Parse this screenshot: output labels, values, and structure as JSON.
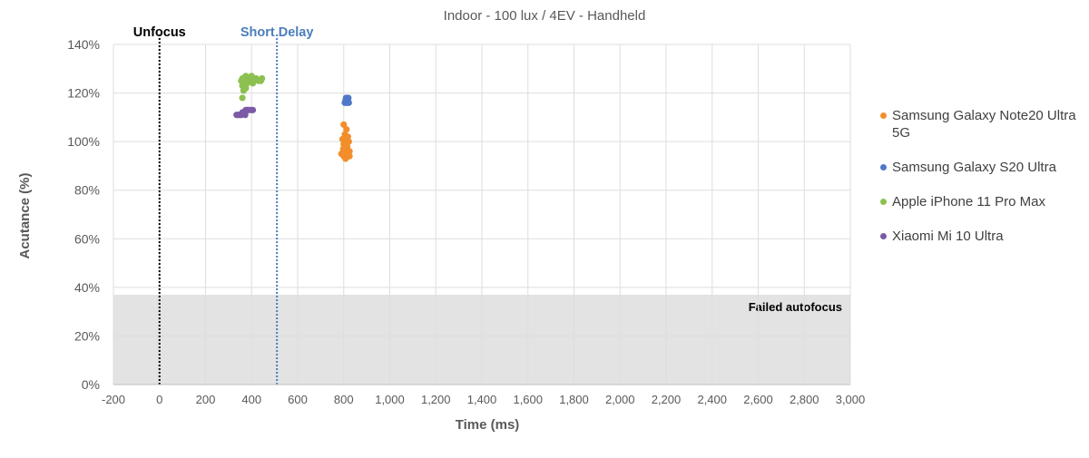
{
  "chart_data": {
    "type": "scatter",
    "title": "Indoor - 100 lux / 4EV - Handheld",
    "xlabel": "Time (ms)",
    "ylabel": "Acutance (%)",
    "xlim": [
      -200,
      3000
    ],
    "ylim": [
      0,
      140
    ],
    "x_ticks": [
      -200,
      0,
      200,
      400,
      600,
      800,
      1000,
      1200,
      1400,
      1600,
      1800,
      2000,
      2200,
      2400,
      2600,
      2800,
      3000
    ],
    "x_tick_labels": [
      "-200",
      "0",
      "200",
      "400",
      "600",
      "800",
      "1,000",
      "1,200",
      "1,400",
      "1,600",
      "1,800",
      "2,000",
      "2,200",
      "2,400",
      "2,600",
      "2,800",
      "3,000"
    ],
    "y_ticks": [
      0,
      20,
      40,
      60,
      80,
      100,
      120,
      140
    ],
    "y_tick_labels": [
      "0%",
      "20%",
      "40%",
      "60%",
      "80%",
      "100%",
      "120%",
      "140%"
    ],
    "grid": true,
    "legend_position": "right",
    "reference_lines": [
      {
        "label": "Unfocus",
        "x": 0,
        "color": "#000000"
      },
      {
        "label": "Short Delay",
        "x": 510,
        "color": "#4a7ebb"
      }
    ],
    "shaded_region": {
      "label": "Failed autofocus",
      "y_from": 0,
      "y_to": 37,
      "color": "#e3e3e3"
    },
    "series": [
      {
        "name": "Samsung Galaxy Note20 Ultra 5G",
        "color": "#f28e2b",
        "points": [
          [
            800,
            107
          ],
          [
            812,
            105
          ],
          [
            805,
            103
          ],
          [
            818,
            102
          ],
          [
            795,
            101
          ],
          [
            808,
            100
          ],
          [
            822,
            100
          ],
          [
            800,
            99
          ],
          [
            815,
            98
          ],
          [
            810,
            97
          ],
          [
            798,
            97
          ],
          [
            825,
            96
          ],
          [
            805,
            95
          ],
          [
            790,
            95
          ],
          [
            818,
            95
          ],
          [
            800,
            94
          ],
          [
            825,
            94
          ],
          [
            808,
            93
          ],
          [
            812,
            99
          ],
          [
            803,
            101
          ]
        ]
      },
      {
        "name": "Samsung Galaxy S20 Ultra",
        "color": "#4e79c7",
        "points": [
          [
            810,
            118
          ],
          [
            820,
            118
          ],
          [
            812,
            117
          ],
          [
            818,
            117
          ],
          [
            805,
            116
          ],
          [
            815,
            116
          ],
          [
            822,
            116
          ],
          [
            808,
            117
          ]
        ]
      },
      {
        "name": "Apple iPhone 11 Pro Max",
        "color": "#8cc152",
        "points": [
          [
            360,
            126
          ],
          [
            375,
            127
          ],
          [
            400,
            127
          ],
          [
            385,
            126
          ],
          [
            420,
            126
          ],
          [
            445,
            126
          ],
          [
            355,
            125
          ],
          [
            370,
            125
          ],
          [
            395,
            125
          ],
          [
            410,
            125
          ],
          [
            430,
            125
          ],
          [
            440,
            125
          ],
          [
            365,
            124
          ],
          [
            380,
            124
          ],
          [
            405,
            124
          ],
          [
            360,
            123
          ],
          [
            375,
            122
          ],
          [
            365,
            121
          ],
          [
            360,
            118
          ]
        ]
      },
      {
        "name": "Xiaomi Mi 10 Ultra",
        "color": "#7b5aa6",
        "points": [
          [
            335,
            111
          ],
          [
            340,
            111
          ],
          [
            345,
            111
          ],
          [
            350,
            111
          ],
          [
            355,
            111
          ],
          [
            360,
            112
          ],
          [
            365,
            112
          ],
          [
            370,
            112
          ],
          [
            375,
            113
          ],
          [
            380,
            113
          ],
          [
            385,
            113
          ],
          [
            395,
            113
          ],
          [
            405,
            113
          ],
          [
            372,
            111
          ]
        ]
      }
    ]
  }
}
